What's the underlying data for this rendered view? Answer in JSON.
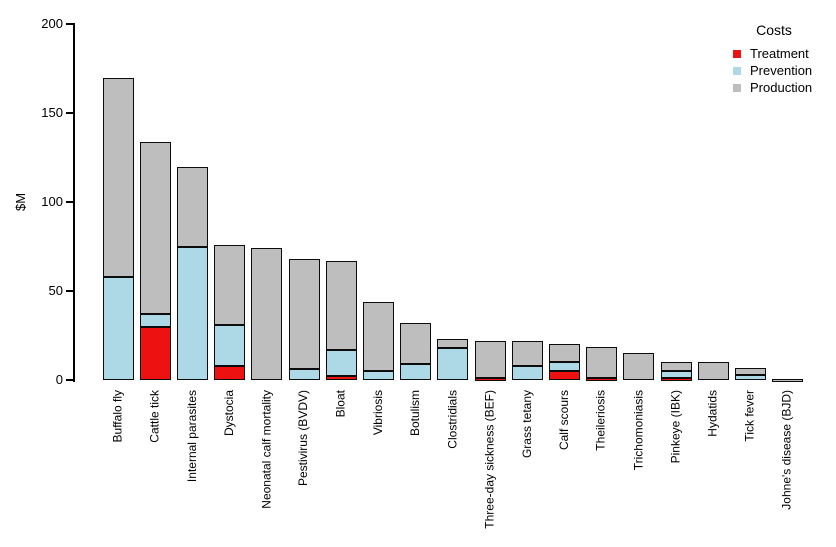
{
  "figure": {
    "background": "#ffffff",
    "bar_border_color": "#0c0c0c",
    "text_color": "#000000"
  },
  "chart_data": {
    "type": "bar",
    "stacked": true,
    "title": "",
    "xlabel": "",
    "ylabel": "$M",
    "ylim": [
      0,
      200
    ],
    "yticks": [
      0,
      50,
      100,
      150,
      200
    ],
    "grid": false,
    "legend": {
      "title": "Costs",
      "position": "top-right"
    },
    "categories": [
      "Buffalo fly",
      "Cattle tick",
      "Internal parasites",
      "Dystocia",
      "Neonatal calf mortality",
      "Pestivirus (BVDV)",
      "Bloat",
      "Vibriosis",
      "Botulism",
      "Clostridials",
      "Three-day sickness (BEF)",
      "Grass tetany",
      "Calf scours",
      "Theileriosis",
      "Trichomoniasis",
      "Pinkeye (IBK)",
      "Hydatids",
      "Tick fever",
      "Johne's disease (BJD)"
    ],
    "series": [
      {
        "name": "Treatment",
        "color": "#ee1111",
        "values": [
          0,
          30,
          0,
          8,
          0,
          0,
          2,
          0,
          0,
          0,
          1,
          0,
          5,
          1,
          0,
          1,
          0,
          0,
          0
        ]
      },
      {
        "name": "Prevention",
        "color": "#add8e6",
        "values": [
          58,
          7,
          75,
          23,
          0,
          6,
          15,
          5,
          9,
          18,
          0,
          8,
          5,
          0,
          0,
          4,
          0,
          3,
          0
        ]
      },
      {
        "name": "Production",
        "color": "#bebebe",
        "values": [
          112,
          97,
          45,
          45,
          74,
          62,
          50,
          39,
          23,
          5,
          21,
          14,
          10,
          17.5,
          15,
          5,
          10,
          4,
          0.5
        ]
      }
    ]
  }
}
